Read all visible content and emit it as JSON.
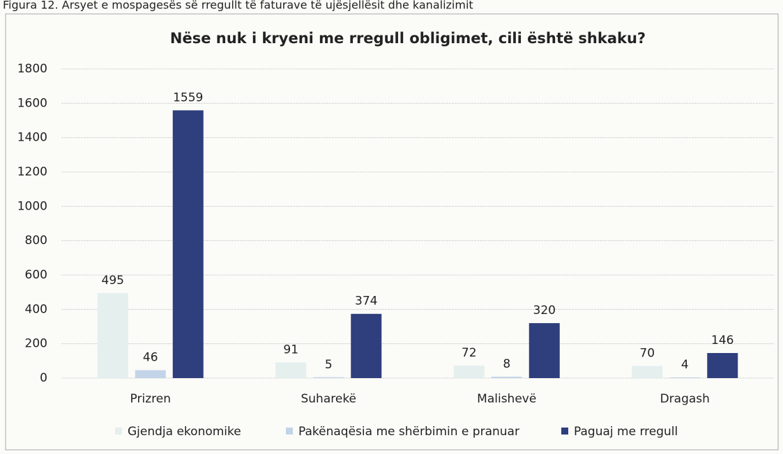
{
  "caption": "Figura 12. Arsyet e mospagesës së rregullt të faturave të ujësjellësit dhe kanalizimit",
  "chart_data": {
    "type": "bar",
    "title": "Nëse nuk i kryeni me rregull obligimet, cili është shkaku?",
    "categories": [
      "Prizren",
      "Suharekë",
      "Malishevë",
      "Dragash"
    ],
    "series": [
      {
        "name": "Gjendja ekonomike",
        "color": "#e4efee",
        "values": [
          495,
          91,
          72,
          70
        ]
      },
      {
        "name": "Pakënaqësia me shërbimin e pranuar",
        "color": "#c3d4e8",
        "values": [
          46,
          5,
          8,
          4
        ]
      },
      {
        "name": "Paguaj me rregull",
        "color": "#2f3e7c",
        "values": [
          1559,
          374,
          320,
          146
        ]
      }
    ],
    "ylim": [
      0,
      1800
    ],
    "yticks": [
      0,
      200,
      400,
      600,
      800,
      1000,
      1200,
      1400,
      1600,
      1800
    ],
    "grid": true,
    "legend": "bottom"
  }
}
